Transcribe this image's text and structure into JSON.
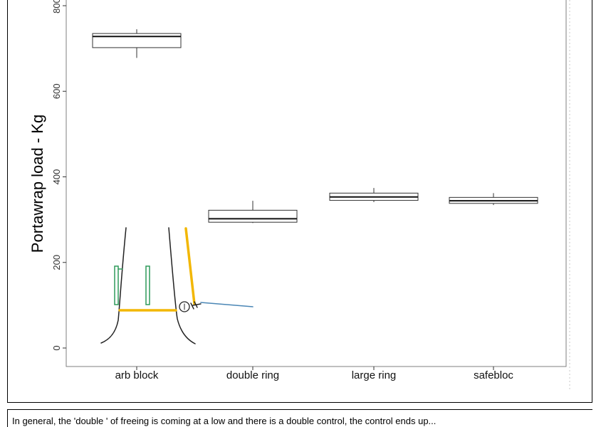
{
  "chart_data": {
    "type": "box",
    "title": "",
    "xlabel": "",
    "ylabel": "Portawrap load - Kg",
    "ylim": [
      -45,
      830
    ],
    "yticks": [
      0,
      200,
      400,
      600,
      800
    ],
    "grid": false,
    "categories": [
      "arb block",
      "double ring",
      "large ring",
      "safebloc"
    ],
    "boxes": [
      {
        "min": 678,
        "q1": 702,
        "median": 728,
        "q3": 735,
        "max": 745
      },
      {
        "min": 292,
        "q1": 294,
        "median": 302,
        "q3": 322,
        "max": 344
      },
      {
        "min": 341,
        "q1": 345,
        "median": 353,
        "q3": 362,
        "max": 374
      },
      {
        "min": 334,
        "q1": 338,
        "median": 344,
        "q3": 352,
        "max": 362
      }
    ]
  },
  "caption": "In general, the 'double ' of freeing is coming at a low and there is a double control, the control ends up..."
}
